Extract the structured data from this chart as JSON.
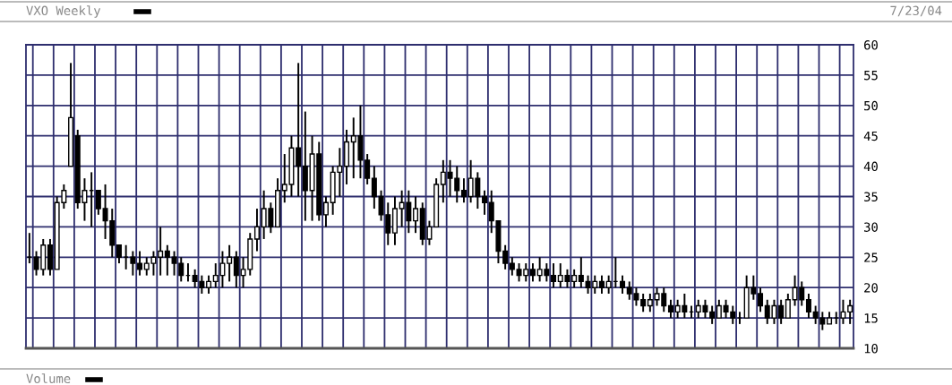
{
  "chart_data": {
    "type": "candlestick",
    "title": "VXO Weekly",
    "color": "#000000",
    "annotations": [
      "7/23/04",
      "Volume"
    ],
    "ylim": [
      10,
      60
    ],
    "yticks": [
      10,
      15,
      20,
      25,
      30,
      35,
      40,
      45,
      50,
      55,
      60
    ],
    "grid": true,
    "tick_labels": "y",
    "categories": [
      null,
      null,
      null,
      null,
      null,
      null,
      null,
      null,
      null,
      null,
      null,
      null,
      null,
      null,
      null,
      null,
      null,
      null,
      null,
      null,
      null,
      null,
      null,
      null,
      null,
      null,
      null,
      null,
      null,
      null,
      null,
      null,
      null,
      null,
      null,
      null,
      null,
      null,
      null,
      null,
      null,
      null,
      null,
      null,
      null,
      null,
      null,
      null,
      null,
      null,
      null,
      null,
      null,
      null,
      null,
      null,
      null,
      null,
      null,
      null,
      null,
      null,
      null,
      null,
      null,
      null,
      null,
      null,
      null,
      null,
      null,
      null,
      null,
      null,
      null,
      null,
      null,
      null,
      null,
      null,
      null,
      null,
      null,
      null,
      null,
      null,
      null,
      null,
      null,
      null,
      null,
      null,
      null,
      null,
      null,
      null,
      null,
      null,
      null,
      null,
      null,
      null,
      null,
      null,
      null,
      null,
      null,
      null,
      null,
      null,
      null,
      null,
      null,
      null,
      null,
      null,
      null,
      null,
      null,
      null
    ],
    "ohlc": [
      [
        25,
        29,
        24,
        25
      ],
      [
        25,
        26,
        22,
        23
      ],
      [
        23,
        28,
        22,
        27
      ],
      [
        27,
        28,
        22,
        23
      ],
      [
        23,
        35,
        23,
        34
      ],
      [
        34,
        37,
        33,
        36
      ],
      [
        40,
        57,
        40,
        48
      ],
      [
        45,
        46,
        33,
        34
      ],
      [
        34,
        38,
        31,
        36
      ],
      [
        36,
        39,
        30,
        36
      ],
      [
        36,
        36,
        32,
        33
      ],
      [
        33,
        37,
        28,
        31
      ],
      [
        31,
        33,
        25,
        27
      ],
      [
        27,
        27,
        24,
        25
      ],
      [
        25,
        27,
        23,
        25
      ],
      [
        25,
        26,
        22,
        24
      ],
      [
        24,
        26,
        22,
        23
      ],
      [
        23,
        25,
        22,
        24
      ],
      [
        24,
        26,
        22,
        25
      ],
      [
        25,
        30,
        22,
        26
      ],
      [
        26,
        27,
        22,
        25
      ],
      [
        25,
        26,
        22,
        24
      ],
      [
        24,
        25,
        21,
        22
      ],
      [
        22,
        24,
        21,
        22
      ],
      [
        22,
        23,
        20,
        21
      ],
      [
        21,
        22,
        19,
        20
      ],
      [
        20,
        22,
        19,
        21
      ],
      [
        21,
        24,
        20,
        22
      ],
      [
        22,
        26,
        20,
        24
      ],
      [
        24,
        27,
        21,
        25
      ],
      [
        25,
        26,
        20,
        22
      ],
      [
        22,
        25,
        20,
        23
      ],
      [
        23,
        29,
        22,
        28
      ],
      [
        28,
        33,
        26,
        30
      ],
      [
        30,
        36,
        28,
        33
      ],
      [
        33,
        34,
        29,
        30
      ],
      [
        30,
        38,
        30,
        36
      ],
      [
        36,
        42,
        34,
        37
      ],
      [
        37,
        45,
        35,
        43
      ],
      [
        43,
        57,
        35,
        40
      ],
      [
        40,
        49,
        31,
        36
      ],
      [
        36,
        45,
        31,
        42
      ],
      [
        42,
        44,
        31,
        32
      ],
      [
        32,
        35,
        30,
        34
      ],
      [
        34,
        40,
        32,
        39
      ],
      [
        39,
        43,
        35,
        40
      ],
      [
        40,
        46,
        37,
        44
      ],
      [
        44,
        48,
        38,
        45
      ],
      [
        45,
        50,
        38,
        41
      ],
      [
        41,
        42,
        37,
        38
      ],
      [
        38,
        40,
        33,
        35
      ],
      [
        35,
        36,
        31,
        32
      ],
      [
        32,
        34,
        27,
        29
      ],
      [
        29,
        35,
        27,
        33
      ],
      [
        33,
        36,
        30,
        34
      ],
      [
        34,
        36,
        29,
        31
      ],
      [
        31,
        35,
        29,
        33
      ],
      [
        33,
        34,
        27,
        28
      ],
      [
        28,
        31,
        27,
        30
      ],
      [
        30,
        38,
        30,
        37
      ],
      [
        37,
        41,
        34,
        39
      ],
      [
        39,
        41,
        35,
        38
      ],
      [
        38,
        40,
        34,
        36
      ],
      [
        36,
        38,
        34,
        35
      ],
      [
        35,
        41,
        34,
        38
      ],
      [
        38,
        39,
        33,
        35
      ],
      [
        35,
        36,
        32,
        34
      ],
      [
        34,
        36,
        29,
        31
      ],
      [
        31,
        31,
        24,
        26
      ],
      [
        26,
        27,
        23,
        24
      ],
      [
        24,
        25,
        22,
        23
      ],
      [
        23,
        24,
        21,
        22
      ],
      [
        22,
        24,
        21,
        23
      ],
      [
        23,
        24,
        21,
        22
      ],
      [
        22,
        25,
        21,
        23
      ],
      [
        23,
        24,
        21,
        22
      ],
      [
        22,
        24,
        20,
        21
      ],
      [
        21,
        24,
        20,
        22
      ],
      [
        22,
        23,
        20,
        21
      ],
      [
        21,
        23,
        20,
        22
      ],
      [
        22,
        25,
        20,
        21
      ],
      [
        21,
        22,
        19,
        20
      ],
      [
        20,
        22,
        19,
        21
      ],
      [
        21,
        22,
        19,
        20
      ],
      [
        20,
        22,
        19,
        21
      ],
      [
        21,
        25,
        20,
        21
      ],
      [
        21,
        22,
        19,
        20
      ],
      [
        20,
        21,
        18,
        19
      ],
      [
        19,
        20,
        17,
        18
      ],
      [
        18,
        19,
        16,
        17
      ],
      [
        17,
        19,
        16,
        18
      ],
      [
        18,
        20,
        17,
        19
      ],
      [
        19,
        20,
        16,
        17
      ],
      [
        17,
        18,
        15,
        16
      ],
      [
        16,
        18,
        15,
        17
      ],
      [
        17,
        19,
        15,
        16
      ],
      [
        16,
        17,
        15,
        16
      ],
      [
        16,
        18,
        15,
        17
      ],
      [
        17,
        18,
        15,
        16
      ],
      [
        16,
        17,
        14,
        15
      ],
      [
        15,
        18,
        15,
        17
      ],
      [
        17,
        18,
        15,
        16
      ],
      [
        16,
        17,
        14,
        15
      ],
      [
        15,
        16,
        14,
        15
      ],
      [
        15,
        22,
        15,
        20
      ],
      [
        20,
        22,
        18,
        19
      ],
      [
        19,
        20,
        16,
        17
      ],
      [
        17,
        18,
        14,
        15
      ],
      [
        15,
        18,
        14,
        17
      ],
      [
        17,
        18,
        14,
        15
      ],
      [
        15,
        19,
        15,
        18
      ],
      [
        18,
        22,
        17,
        20
      ],
      [
        20,
        21,
        17,
        18
      ],
      [
        18,
        19,
        15,
        16
      ],
      [
        16,
        17,
        14,
        15
      ],
      [
        15,
        16,
        13,
        14
      ],
      [
        14,
        16,
        14,
        15
      ],
      [
        15,
        16,
        14,
        15
      ],
      [
        15,
        18,
        14,
        16
      ],
      [
        16,
        18,
        14,
        17
      ]
    ]
  }
}
